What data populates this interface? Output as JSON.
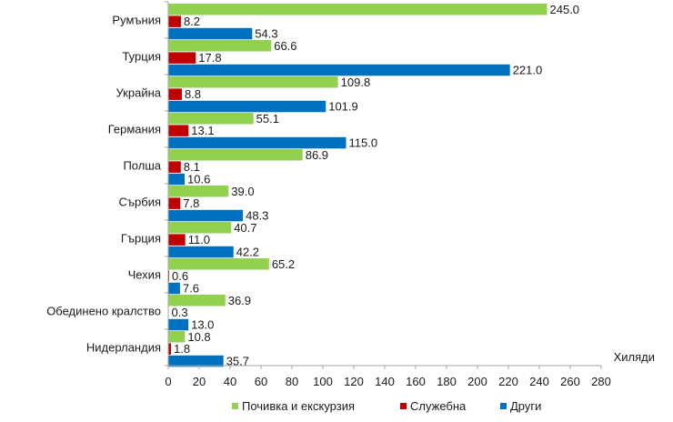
{
  "chart_data": {
    "type": "bar",
    "orientation": "horizontal",
    "categories": [
      "Румъния",
      "Турция",
      "Украйна",
      "Германия",
      "Полша",
      "Сърбия",
      "Гърция",
      "Чехия",
      "Обединено кралство",
      "Нидерландия"
    ],
    "series": [
      {
        "name": "Почивка и екскурзия",
        "color": "#92d050",
        "values": [
          245.0,
          66.6,
          109.8,
          55.1,
          86.9,
          39.0,
          40.7,
          65.2,
          36.9,
          10.8
        ]
      },
      {
        "name": "Служебна",
        "color": "#c00000",
        "values": [
          8.2,
          17.8,
          8.8,
          13.1,
          8.1,
          7.8,
          11.0,
          0.6,
          0.3,
          1.8
        ]
      },
      {
        "name": "Други",
        "color": "#0070c0",
        "values": [
          54.3,
          221.0,
          101.9,
          115.0,
          10.6,
          48.3,
          42.2,
          7.6,
          13.0,
          35.7
        ]
      }
    ],
    "xlim": [
      0,
      280
    ],
    "xticks": [
      "0",
      "20",
      "40",
      "60",
      "80",
      "100",
      "120",
      "140",
      "160",
      "180",
      "200",
      "220",
      "240",
      "260",
      "280"
    ],
    "xlabel": "Хиляди",
    "legend_position": "bottom",
    "grid": false
  }
}
